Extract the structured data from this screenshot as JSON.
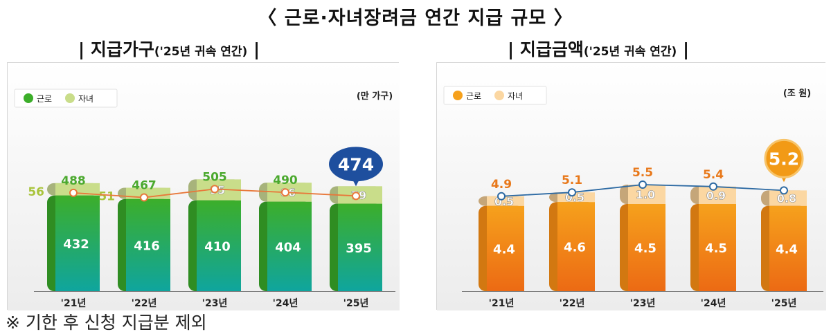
{
  "title": "〈 근로·자녀장려금 연간 지급 규모 〉",
  "left_heading": {
    "main": "지급가구",
    "note": "('25년 귀속 연간)"
  },
  "right_heading": {
    "main": "지급금액",
    "note": "('25년 귀속 연간)"
  },
  "footnote": "※ 기한 후 신청 지급분 제외",
  "colors": {
    "left_bottom_top": "#3cae2a",
    "left_bottom_bottom": "#0fa59e",
    "left_top": "#c9dd8a",
    "left_line": "#e8783a",
    "left_badge": "#1e4f9e",
    "right_bottom_top": "#f6a11c",
    "right_bottom_bottom": "#ec6a14",
    "right_top": "#fbd7a2",
    "right_line": "#2d6aa3",
    "right_badge": "#f29a16"
  },
  "chart_data": [
    {
      "type": "bar",
      "title": "지급가구",
      "unit": "(만 가구)",
      "legend": [
        "근로",
        "자녀"
      ],
      "categories": [
        "'21년",
        "'22년",
        "'23년",
        "'24년",
        "'25년"
      ],
      "series": [
        {
          "name": "근로",
          "values": [
            432,
            416,
            410,
            404,
            395
          ]
        },
        {
          "name": "자녀",
          "values": [
            56,
            51,
            95,
            86,
            79
          ]
        }
      ],
      "totals": [
        488,
        467,
        505,
        490,
        474
      ],
      "totals_labels": [
        "488",
        "467",
        "505",
        "490",
        "474"
      ],
      "bottom_labels": [
        "432",
        "416",
        "410",
        "404",
        "395"
      ],
      "top_labels": [
        "56",
        "51",
        "95",
        "86",
        "79"
      ],
      "highlight_total": "474"
    },
    {
      "type": "bar",
      "title": "지급금액",
      "unit": "(조 원)",
      "legend": [
        "근로",
        "자녀"
      ],
      "categories": [
        "'21년",
        "'22년",
        "'23년",
        "'24년",
        "'25년"
      ],
      "series": [
        {
          "name": "근로",
          "values": [
            4.4,
            4.6,
            4.5,
            4.5,
            4.4
          ]
        },
        {
          "name": "자녀",
          "values": [
            0.5,
            0.5,
            1.0,
            0.9,
            0.8
          ]
        }
      ],
      "totals": [
        4.9,
        5.1,
        5.5,
        5.4,
        5.2
      ],
      "totals_labels": [
        "4.9",
        "5.1",
        "5.5",
        "5.4",
        "5.2"
      ],
      "bottom_labels": [
        "4.4",
        "4.6",
        "4.5",
        "4.5",
        "4.4"
      ],
      "top_labels": [
        "0.5",
        "0.5",
        "1.0",
        "0.9",
        "0.8"
      ],
      "highlight_total": "5.2"
    }
  ]
}
